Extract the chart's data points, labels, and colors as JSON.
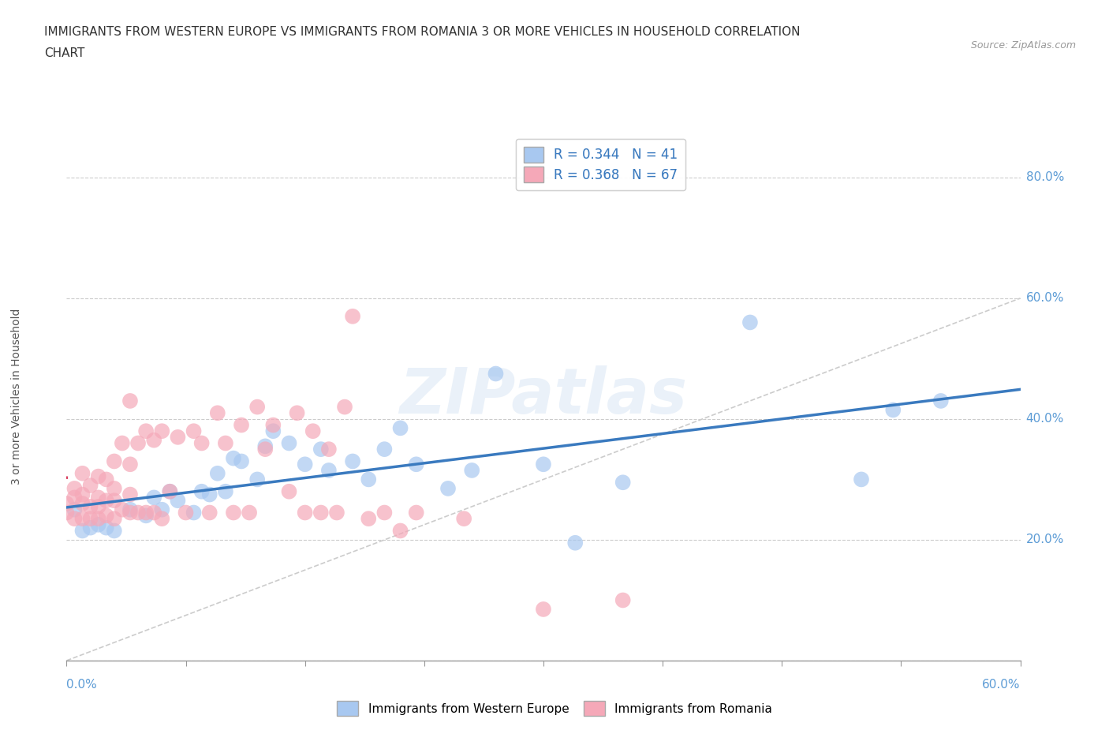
{
  "title_line1": "IMMIGRANTS FROM WESTERN EUROPE VS IMMIGRANTS FROM ROMANIA 3 OR MORE VEHICLES IN HOUSEHOLD CORRELATION",
  "title_line2": "CHART",
  "source": "Source: ZipAtlas.com",
  "ylabel": "3 or more Vehicles in Household",
  "xlim": [
    0.0,
    0.6
  ],
  "ylim": [
    0.0,
    0.875
  ],
  "blue_R": 0.344,
  "blue_N": 41,
  "pink_R": 0.368,
  "pink_N": 67,
  "blue_color": "#a8c8f0",
  "pink_color": "#f5a8b8",
  "blue_line_color": "#3a7abf",
  "pink_line_color": "#d94060",
  "ref_line_color": "#cccccc",
  "ytick_vals": [
    0.0,
    0.2,
    0.4,
    0.6,
    0.8
  ],
  "ytick_labels": [
    "0.0%",
    "20.0%",
    "40.0%",
    "60.0%",
    "80.0%"
  ],
  "xtick_vals": [
    0.0,
    0.075,
    0.15,
    0.225,
    0.3,
    0.375,
    0.45,
    0.525,
    0.6
  ],
  "blue_x": [
    0.005,
    0.01,
    0.015,
    0.02,
    0.025,
    0.03,
    0.04,
    0.05,
    0.055,
    0.06,
    0.065,
    0.07,
    0.08,
    0.085,
    0.09,
    0.095,
    0.1,
    0.105,
    0.11,
    0.12,
    0.125,
    0.13,
    0.14,
    0.15,
    0.16,
    0.165,
    0.18,
    0.19,
    0.2,
    0.21,
    0.22,
    0.24,
    0.255,
    0.27,
    0.3,
    0.32,
    0.35,
    0.43,
    0.5,
    0.52,
    0.55
  ],
  "blue_y": [
    0.25,
    0.215,
    0.22,
    0.225,
    0.22,
    0.215,
    0.25,
    0.24,
    0.27,
    0.25,
    0.28,
    0.265,
    0.245,
    0.28,
    0.275,
    0.31,
    0.28,
    0.335,
    0.33,
    0.3,
    0.355,
    0.38,
    0.36,
    0.325,
    0.35,
    0.315,
    0.33,
    0.3,
    0.35,
    0.385,
    0.325,
    0.285,
    0.315,
    0.475,
    0.325,
    0.195,
    0.295,
    0.56,
    0.3,
    0.415,
    0.43
  ],
  "pink_x": [
    0.0,
    0.0,
    0.005,
    0.005,
    0.005,
    0.01,
    0.01,
    0.01,
    0.01,
    0.015,
    0.015,
    0.015,
    0.02,
    0.02,
    0.02,
    0.02,
    0.025,
    0.025,
    0.025,
    0.03,
    0.03,
    0.03,
    0.03,
    0.035,
    0.035,
    0.04,
    0.04,
    0.04,
    0.04,
    0.045,
    0.045,
    0.05,
    0.05,
    0.055,
    0.055,
    0.06,
    0.06,
    0.065,
    0.07,
    0.075,
    0.08,
    0.085,
    0.09,
    0.095,
    0.1,
    0.105,
    0.11,
    0.115,
    0.12,
    0.125,
    0.13,
    0.14,
    0.145,
    0.15,
    0.155,
    0.16,
    0.165,
    0.17,
    0.175,
    0.18,
    0.19,
    0.2,
    0.21,
    0.22,
    0.25,
    0.3,
    0.35
  ],
  "pink_y": [
    0.245,
    0.26,
    0.235,
    0.27,
    0.285,
    0.235,
    0.26,
    0.275,
    0.31,
    0.235,
    0.255,
    0.29,
    0.235,
    0.255,
    0.27,
    0.305,
    0.24,
    0.265,
    0.3,
    0.235,
    0.265,
    0.285,
    0.33,
    0.25,
    0.36,
    0.245,
    0.275,
    0.325,
    0.43,
    0.245,
    0.36,
    0.245,
    0.38,
    0.245,
    0.365,
    0.235,
    0.38,
    0.28,
    0.37,
    0.245,
    0.38,
    0.36,
    0.245,
    0.41,
    0.36,
    0.245,
    0.39,
    0.245,
    0.42,
    0.35,
    0.39,
    0.28,
    0.41,
    0.245,
    0.38,
    0.245,
    0.35,
    0.245,
    0.42,
    0.57,
    0.235,
    0.245,
    0.215,
    0.245,
    0.235,
    0.085,
    0.1
  ],
  "watermark_text": "ZIPatlas",
  "legend_label_blue": "Immigrants from Western Europe",
  "legend_label_pink": "Immigrants from Romania"
}
